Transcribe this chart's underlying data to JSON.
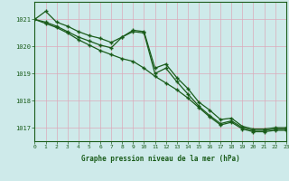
{
  "line1": [
    1021.0,
    1021.3,
    1020.9,
    1020.75,
    1020.55,
    1020.4,
    1020.3,
    1020.15,
    1020.35,
    1020.6,
    1020.55,
    1019.2,
    1019.35,
    1018.85,
    1018.45,
    1017.95,
    1017.65,
    1017.3,
    1017.35,
    1017.05,
    1016.95,
    1016.95,
    1017.0,
    1017.0
  ],
  "line2": [
    1021.0,
    1020.9,
    1020.75,
    1020.55,
    1020.35,
    1020.2,
    1020.05,
    1019.95,
    1020.35,
    1020.55,
    1020.5,
    1019.0,
    1019.2,
    1018.7,
    1018.25,
    1017.8,
    1017.45,
    1017.15,
    1017.25,
    1017.0,
    1016.9,
    1016.9,
    1016.95,
    1016.95
  ],
  "line3": [
    1021.0,
    1020.85,
    1020.7,
    1020.5,
    1020.25,
    1020.05,
    1019.85,
    1019.7,
    1019.55,
    1019.45,
    1019.2,
    1018.9,
    1018.65,
    1018.4,
    1018.1,
    1017.75,
    1017.4,
    1017.1,
    1017.2,
    1016.95,
    1016.85,
    1016.85,
    1016.9,
    1016.9
  ],
  "xlim": [
    0,
    23
  ],
  "ylim": [
    1016.5,
    1021.65
  ],
  "yticks": [
    1017,
    1018,
    1019,
    1020,
    1021
  ],
  "xticks": [
    0,
    1,
    2,
    3,
    4,
    5,
    6,
    7,
    8,
    9,
    10,
    11,
    12,
    13,
    14,
    15,
    16,
    17,
    18,
    19,
    20,
    21,
    22,
    23
  ],
  "xlabel": "Graphe pression niveau de la mer (hPa)",
  "line_color": "#1a5c1a",
  "bg_color": "#ceeaea",
  "grid_color": "#dbaaba",
  "tick_color": "#1a5c1a",
  "label_fontsize": 5.5,
  "tick_fontsize": 5.0,
  "xtick_fontsize": 4.5
}
